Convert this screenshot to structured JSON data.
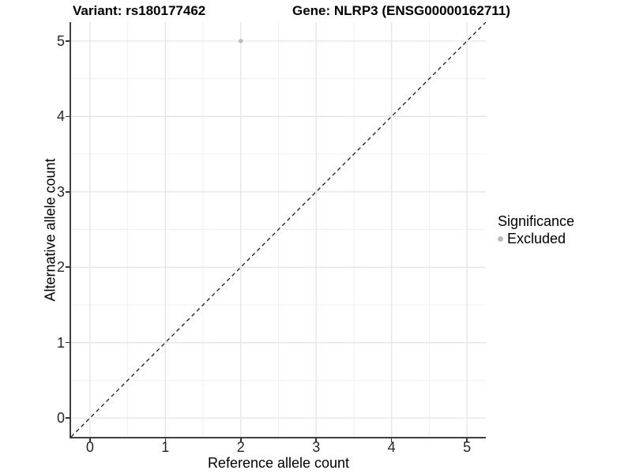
{
  "header": {
    "title_left": "Variant: rs180177462",
    "title_right": "Gene: NLRP3 (ENSG00000162711)"
  },
  "chart_data": {
    "type": "scatter",
    "title": "Variant: rs180177462   Gene: NLRP3 (ENSG00000162711)",
    "xlabel": "Reference allele count",
    "ylabel": "Alternative allele count",
    "xlim": [
      -0.25,
      5.25
    ],
    "ylim": [
      -0.25,
      5.25
    ],
    "x_ticks": [
      0,
      1,
      2,
      3,
      4,
      5
    ],
    "y_ticks": [
      0,
      1,
      2,
      3,
      4,
      5
    ],
    "x_minor_ticks": [
      0.5,
      1.5,
      2.5,
      3.5,
      4.5
    ],
    "y_minor_ticks": [
      0.5,
      1.5,
      2.5,
      3.5,
      4.5
    ],
    "grid": true,
    "reference_line": {
      "type": "identity",
      "equation": "y = x",
      "style": "dashed",
      "color": "#1a1a1a"
    },
    "series": [
      {
        "name": "Excluded",
        "color": "#bdbdbd",
        "marker": "circle",
        "points": [
          {
            "x": 2,
            "y": 5
          }
        ]
      }
    ],
    "legend": {
      "title": "Significance",
      "position": "right",
      "items": [
        {
          "label": "Excluded",
          "color": "#bdbdbd",
          "marker": "circle"
        }
      ]
    }
  },
  "style": {
    "major_grid_color": "#e5e5e5",
    "minor_grid_color": "#f0f0f0",
    "axis_line_color": "#404040",
    "tick_mark_color": "#333333",
    "point_radius": 2.8
  }
}
